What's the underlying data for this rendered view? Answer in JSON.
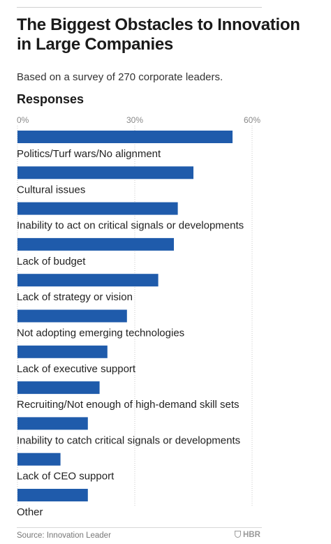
{
  "header": {
    "title": "The Biggest Obstacles to Innovation in Large Companies",
    "subtitle": "Based on a survey of 270 corporate leaders.",
    "section": "Responses"
  },
  "footer": {
    "source": "Source: Innovation Leader",
    "brand": "HBR"
  },
  "chart_data": {
    "type": "bar",
    "orientation": "horizontal",
    "categories": [
      "Politics/Turf wars/No alignment",
      "Cultural issues",
      "Inability to act on critical signals or developments",
      "Lack of budget",
      "Lack of strategy or vision",
      "Not adopting emerging technologies",
      "Lack of executive support",
      "Recruiting/Not enough of high-demand skill sets",
      "Inability to catch critical signals or developments",
      "Lack of CEO support",
      "Other"
    ],
    "values": [
      55,
      45,
      41,
      40,
      36,
      28,
      23,
      21,
      18,
      11,
      18
    ],
    "unit": "%",
    "xlim": [
      0,
      60
    ],
    "ticks": [
      "0%",
      "30%",
      "60%"
    ],
    "tick_values": [
      0,
      30,
      60
    ],
    "bar_color": "#1f5bab",
    "grid": true,
    "legend": "none"
  }
}
